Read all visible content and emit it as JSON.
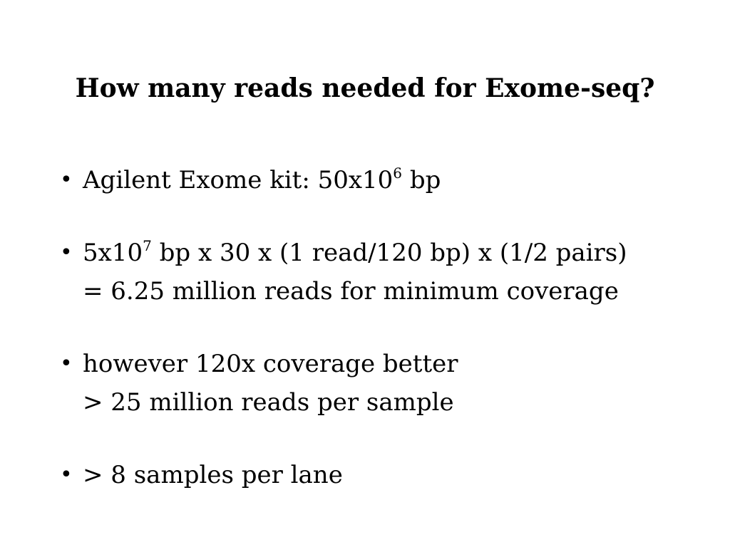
{
  "slide": {
    "title": "How many reads needed for Exome-seq?",
    "bullets": [
      {
        "lines": [
          {
            "pre": "Agilent Exome kit: 50x10",
            "sup": "6",
            "post": " bp"
          }
        ]
      },
      {
        "lines": [
          {
            "pre": "5x10",
            "sup": "7",
            "post": " bp x 30 x (1 read/120 bp) x (1/2 pairs)"
          },
          {
            "pre": "= 6.25 million reads for minimum coverage",
            "sup": "",
            "post": ""
          }
        ]
      },
      {
        "lines": [
          {
            "pre": "however 120x coverage better",
            "sup": "",
            "post": ""
          },
          {
            "pre": "> 25 million reads per sample",
            "sup": "",
            "post": ""
          }
        ]
      },
      {
        "lines": [
          {
            "pre": "> 8 samples per lane",
            "sup": "",
            "post": ""
          }
        ]
      }
    ],
    "bullet_symbol": "•"
  }
}
